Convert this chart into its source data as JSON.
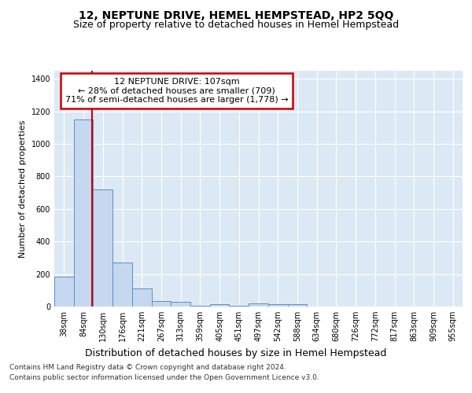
{
  "title": "12, NEPTUNE DRIVE, HEMEL HEMPSTEAD, HP2 5QQ",
  "subtitle": "Size of property relative to detached houses in Hemel Hempstead",
  "xlabel": "Distribution of detached houses by size in Hemel Hempstead",
  "ylabel": "Number of detached properties",
  "bar_labels": [
    "38sqm",
    "84sqm",
    "130sqm",
    "176sqm",
    "221sqm",
    "267sqm",
    "313sqm",
    "359sqm",
    "405sqm",
    "451sqm",
    "497sqm",
    "542sqm",
    "588sqm",
    "634sqm",
    "680sqm",
    "726sqm",
    "772sqm",
    "817sqm",
    "863sqm",
    "909sqm",
    "955sqm"
  ],
  "bar_values": [
    185,
    1150,
    720,
    270,
    110,
    35,
    28,
    5,
    13,
    5,
    18,
    13,
    13,
    0,
    0,
    0,
    0,
    0,
    0,
    0,
    0
  ],
  "bar_color": "#c5d8ef",
  "bar_edge_color": "#5b8ec4",
  "property_line_x": 1.45,
  "annotation_text": "12 NEPTUNE DRIVE: 107sqm\n← 28% of detached houses are smaller (709)\n71% of semi-detached houses are larger (1,778) →",
  "annotation_box_facecolor": "#ffffff",
  "annotation_box_edgecolor": "#cc0000",
  "vline_color": "#cc0000",
  "ylim": [
    0,
    1450
  ],
  "yticks": [
    0,
    200,
    400,
    600,
    800,
    1000,
    1200,
    1400
  ],
  "plot_bg_color": "#dce9f5",
  "fig_bg_color": "#ffffff",
  "footer_line1": "Contains HM Land Registry data © Crown copyright and database right 2024.",
  "footer_line2": "Contains public sector information licensed under the Open Government Licence v3.0.",
  "title_fontsize": 10,
  "subtitle_fontsize": 9,
  "tick_fontsize": 7,
  "ylabel_fontsize": 8,
  "xlabel_fontsize": 9,
  "annotation_fontsize": 8,
  "footer_fontsize": 6.5
}
